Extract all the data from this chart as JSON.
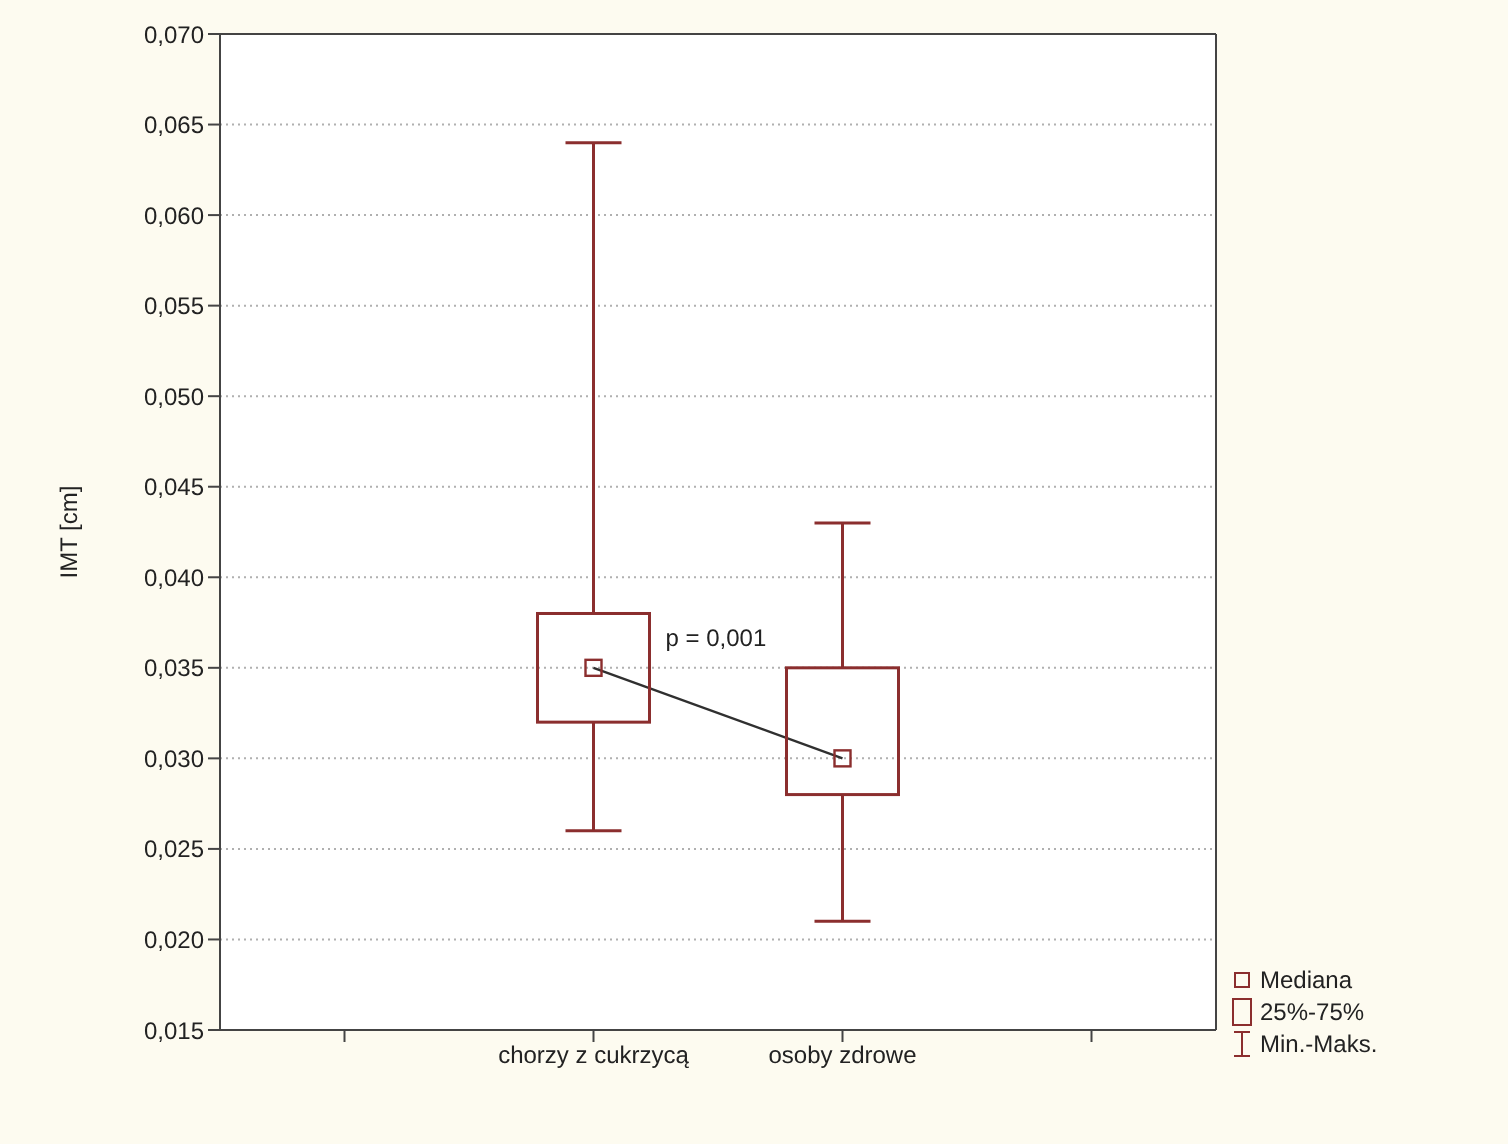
{
  "chart_data": {
    "type": "box",
    "ylabel": "IMT [cm]",
    "categories": [
      null,
      "chorzy z cukrzycą",
      "osoby zdrowe",
      null
    ],
    "boxes": [
      null,
      {
        "low": 0.026,
        "q1": 0.032,
        "median": 0.035,
        "q3": 0.038,
        "high": 0.064
      },
      {
        "low": 0.021,
        "q1": 0.028,
        "median": 0.03,
        "q3": 0.035,
        "high": 0.043
      },
      null
    ],
    "color": "#8b2e2e",
    "series": [
      {
        "type": "line",
        "x": [
          "chorzy z cukrzycą",
          "osoby zdrowe"
        ],
        "values": [
          0.035,
          0.03
        ],
        "color": "#303030"
      }
    ],
    "ylim": [
      0.015,
      0.07
    ],
    "yticks": [
      {
        "value": 0.015,
        "label": "0,015"
      },
      {
        "value": 0.02,
        "label": "0,020"
      },
      {
        "value": 0.025,
        "label": "0,025"
      },
      {
        "value": 0.03,
        "label": "0,030"
      },
      {
        "value": 0.035,
        "label": "0,035"
      },
      {
        "value": 0.04,
        "label": "0,040"
      },
      {
        "value": 0.045,
        "label": "0,045"
      },
      {
        "value": 0.05,
        "label": "0,050"
      },
      {
        "value": 0.055,
        "label": "0,055"
      },
      {
        "value": 0.06,
        "label": "0,060"
      },
      {
        "value": 0.065,
        "label": "0,065"
      },
      {
        "value": 0.07,
        "label": "0,070"
      }
    ],
    "grid": "y",
    "annotations": [
      "p = 0,001",
      "Mediana",
      "25%-75%",
      "Min.-Maks."
    ]
  }
}
